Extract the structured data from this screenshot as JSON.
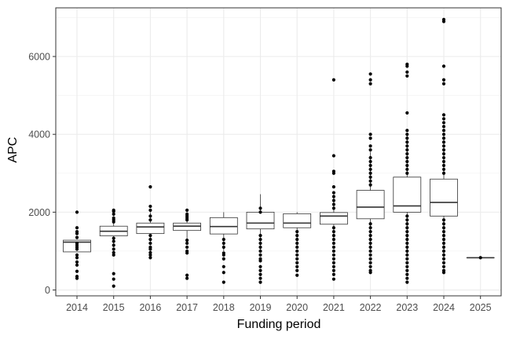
{
  "chart_data": {
    "type": "box",
    "xlabel": "Funding period",
    "ylabel": "APC",
    "categories": [
      "2014",
      "2015",
      "2016",
      "2017",
      "2018",
      "2019",
      "2020",
      "2021",
      "2022",
      "2023",
      "2024",
      "2025"
    ],
    "ylim": [
      -150,
      7250
    ],
    "yticks": [
      0,
      2000,
      4000,
      6000
    ],
    "grid": true,
    "boxes": [
      {
        "q1": 980,
        "median": 1230,
        "q3": 1280,
        "whisker_low": 980,
        "whisker_high": 1290,
        "outliers": [
          300,
          350,
          480,
          640,
          720,
          830,
          900,
          1050,
          1100,
          1150,
          1200,
          1350,
          1450,
          1500,
          1600,
          2000
        ]
      },
      {
        "q1": 1390,
        "median": 1510,
        "q3": 1640,
        "whisker_low": 1100,
        "whisker_high": 1900,
        "outliers": [
          100,
          280,
          420,
          900,
          960,
          1050,
          1150,
          1250,
          1330,
          1750,
          1800,
          1850,
          1950,
          2020,
          2050
        ]
      },
      {
        "q1": 1450,
        "median": 1620,
        "q3": 1720,
        "whisker_low": 1150,
        "whisker_high": 2000,
        "outliers": [
          830,
          900,
          960,
          1050,
          1100,
          1200,
          1300,
          1400,
          1800,
          1900,
          2050,
          2150,
          2650
        ]
      },
      {
        "q1": 1530,
        "median": 1640,
        "q3": 1720,
        "whisker_low": 1320,
        "whisker_high": 2000,
        "outliers": [
          300,
          380,
          950,
          1000,
          1100,
          1200,
          1280,
          1800,
          1850,
          1900,
          1950,
          2050
        ]
      },
      {
        "q1": 1440,
        "median": 1630,
        "q3": 1860,
        "whisker_low": 1000,
        "whisker_high": 2000,
        "outliers": [
          200,
          450,
          600,
          800,
          900,
          950,
          1100,
          1200,
          1300
        ]
      },
      {
        "q1": 1570,
        "median": 1720,
        "q3": 2000,
        "whisker_low": 1000,
        "whisker_high": 2460,
        "outliers": [
          200,
          300,
          400,
          500,
          600,
          750,
          800,
          900,
          1000,
          1100,
          1200,
          1300,
          1400,
          2000,
          2100
        ]
      },
      {
        "q1": 1600,
        "median": 1720,
        "q3": 1960,
        "whisker_low": 1100,
        "whisker_high": 2000,
        "outliers": [
          380,
          500,
          600,
          700,
          800,
          900,
          1000,
          1100,
          1200,
          1300,
          1400,
          1500
        ]
      },
      {
        "q1": 1690,
        "median": 1900,
        "q3": 1990,
        "whisker_low": 1250,
        "whisker_high": 2450,
        "outliers": [
          280,
          400,
          500,
          600,
          700,
          800,
          900,
          1000,
          1100,
          1200,
          1300,
          1400,
          1500,
          1600,
          2100,
          2200,
          2300,
          2400,
          2500,
          2650,
          3000,
          3050,
          3450,
          5400
        ]
      },
      {
        "q1": 1830,
        "median": 2130,
        "q3": 2560,
        "whisker_low": 1000,
        "whisker_high": 3550,
        "outliers": [
          450,
          500,
          600,
          700,
          800,
          900,
          1000,
          1100,
          1200,
          1300,
          1400,
          1500,
          1600,
          1700,
          2700,
          2800,
          2900,
          3000,
          3100,
          3200,
          3300,
          3400,
          3600,
          3700,
          3900,
          4000,
          5300,
          5400,
          5550
        ]
      },
      {
        "q1": 2000,
        "median": 2160,
        "q3": 2900,
        "whisker_low": 900,
        "whisker_high": 4000,
        "outliers": [
          200,
          300,
          400,
          500,
          600,
          700,
          800,
          900,
          1000,
          1100,
          1200,
          1300,
          1400,
          1500,
          1600,
          1700,
          1800,
          1900,
          3000,
          3100,
          3200,
          3300,
          3400,
          3500,
          3600,
          3700,
          3800,
          3900,
          4000,
          4100,
          4550,
          5500,
          5600,
          5750,
          5800
        ]
      },
      {
        "q1": 1900,
        "median": 2250,
        "q3": 2850,
        "whisker_low": 800,
        "whisker_high": 4000,
        "outliers": [
          450,
          500,
          600,
          700,
          800,
          900,
          1000,
          1100,
          1200,
          1300,
          1400,
          1500,
          1600,
          1700,
          1800,
          3000,
          3100,
          3200,
          3300,
          3400,
          3500,
          3600,
          3700,
          3800,
          3900,
          4000,
          4100,
          4200,
          4300,
          4400,
          4500,
          5300,
          5400,
          5750,
          6900,
          6950
        ]
      },
      {
        "q1": 830,
        "median": 830,
        "q3": 830,
        "whisker_low": 830,
        "whisker_high": 830,
        "outliers": [
          830
        ]
      }
    ]
  }
}
